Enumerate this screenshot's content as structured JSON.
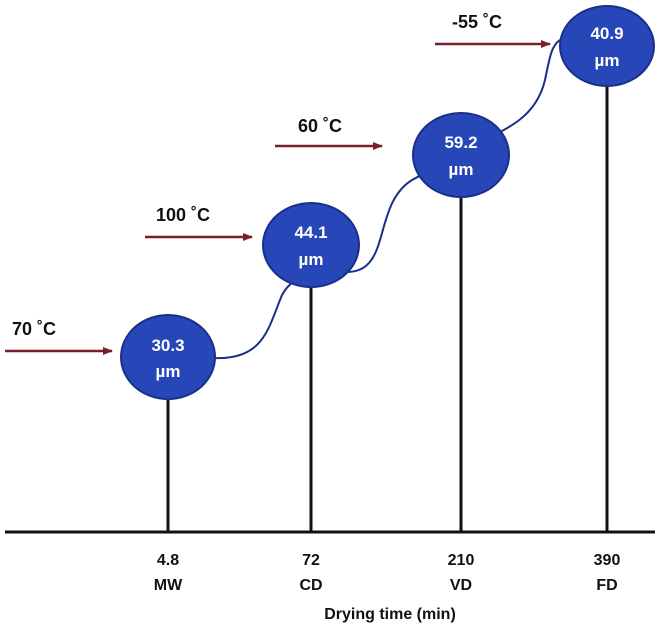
{
  "colors": {
    "bubble_fill": "#2746b8",
    "bubble_stroke": "#1a2f8a",
    "arrow": "#7a1e2c",
    "line": "#111111",
    "connector": "#1a2f8a"
  },
  "axis": {
    "title": "Drying time (min)"
  },
  "methods": [
    {
      "time": "4.8",
      "method": "MW",
      "size": "30.3",
      "unit": "µm",
      "temperature": "70 ˚C"
    },
    {
      "time": "72",
      "method": "CD",
      "size": "44.1",
      "unit": "µm",
      "temperature": "100 ˚C"
    },
    {
      "time": "210",
      "method": "VD",
      "size": "59.2",
      "unit": "µm",
      "temperature": "60 ˚C"
    },
    {
      "time": "390",
      "method": "FD",
      "size": "40.9",
      "unit": "µm",
      "temperature": "-55 ˚C"
    }
  ]
}
